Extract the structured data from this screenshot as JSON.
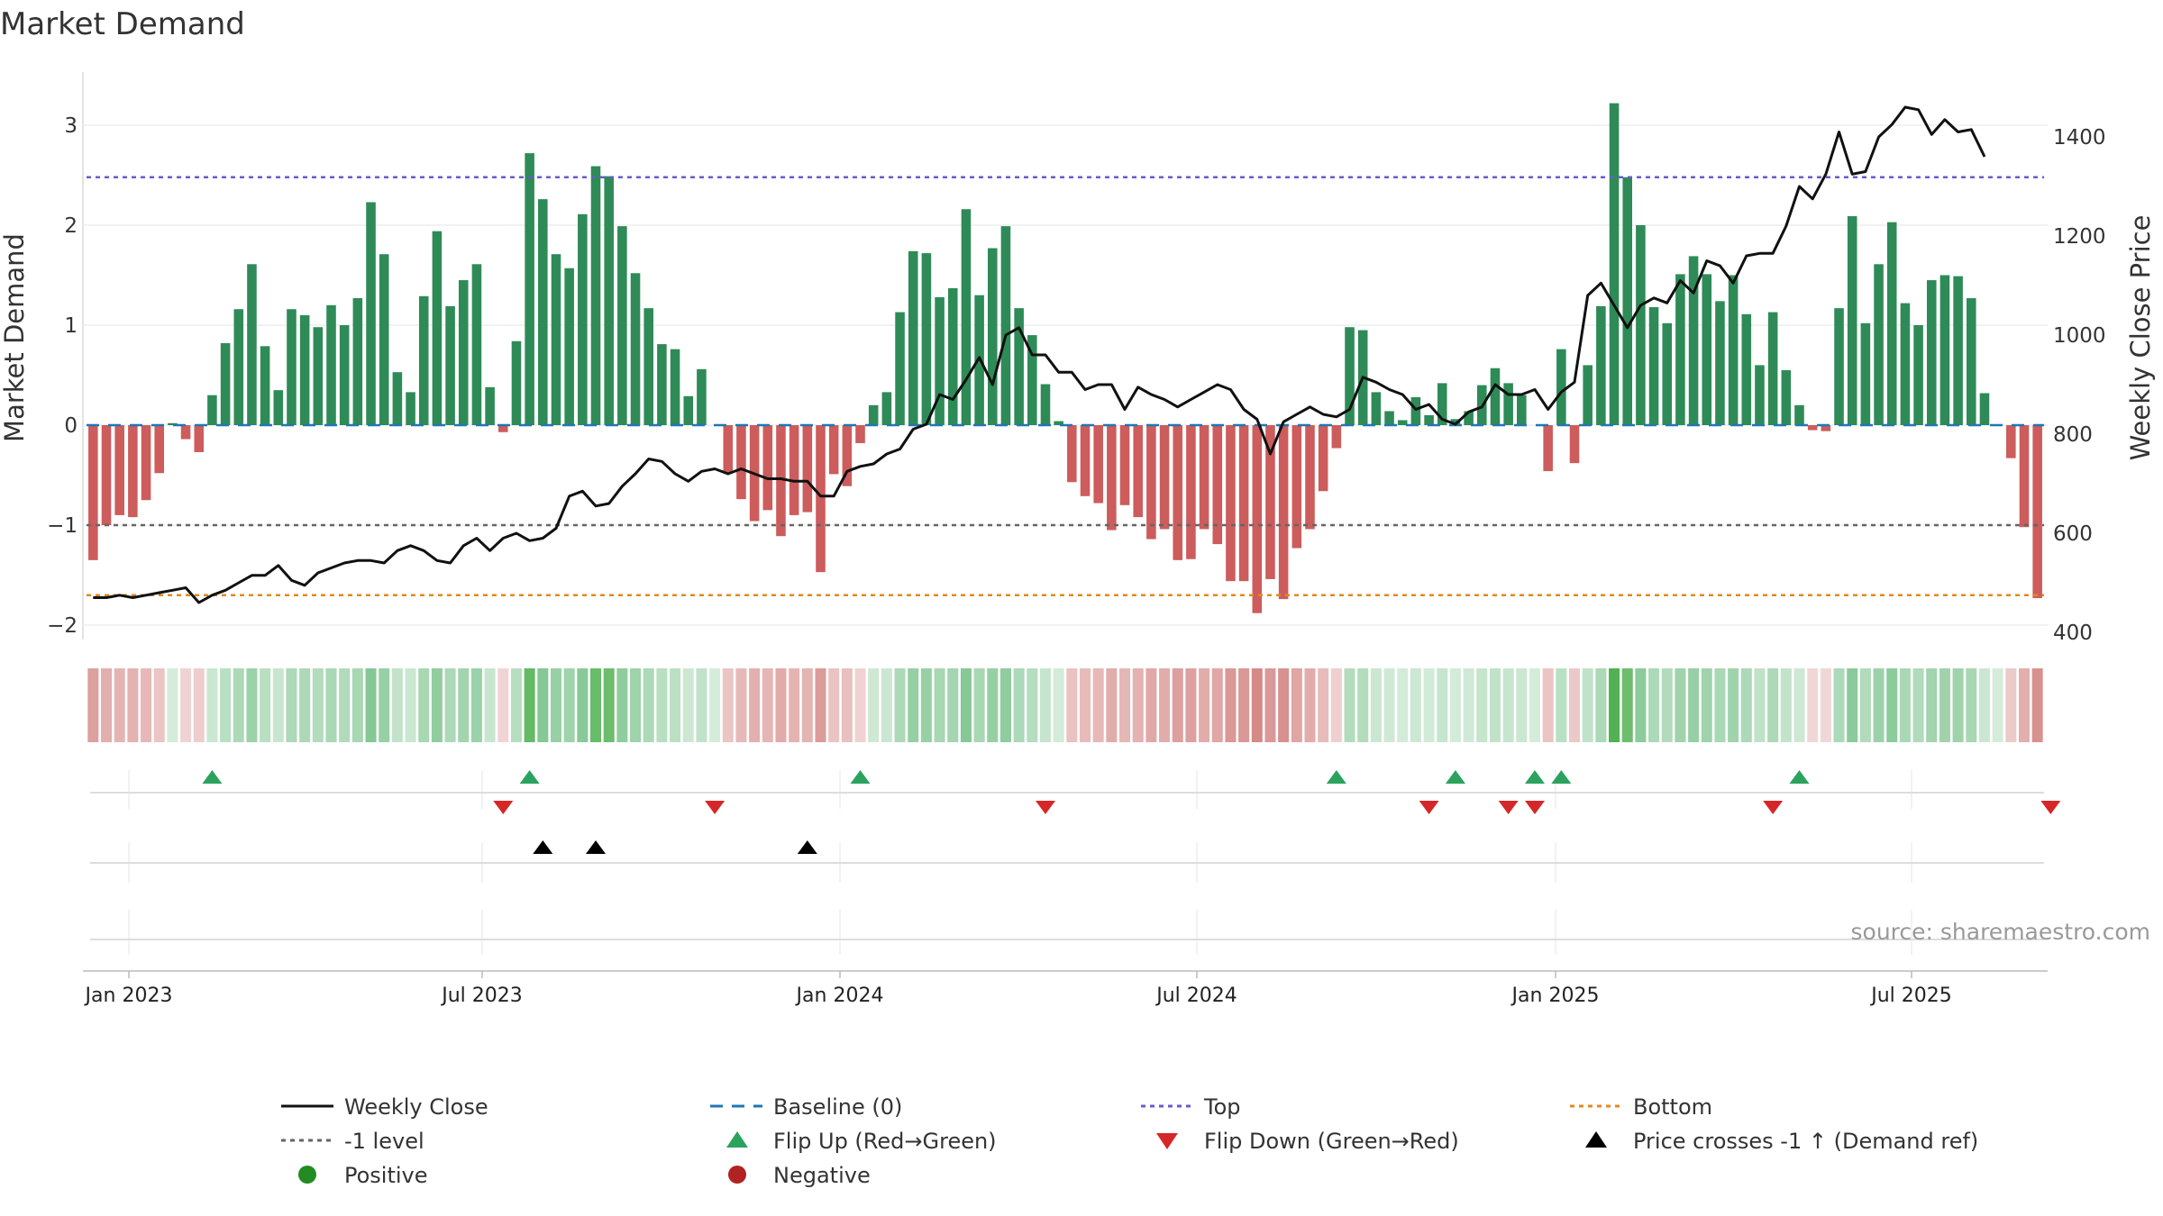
{
  "chart_data": {
    "type": "bar",
    "title": "Market Demand",
    "ylabel": "Market Demand",
    "y2label": "Weekly Close Price",
    "ylim": [
      -2.2,
      3.4
    ],
    "y2lim": [
      380,
      1540
    ],
    "yticks": [
      -2,
      -1,
      0,
      1,
      2,
      3
    ],
    "y2ticks": [
      400,
      600,
      800,
      1000,
      1200,
      1400
    ],
    "xticks": [
      "Jan 2023",
      "Jul 2023",
      "Jan 2024",
      "Jul 2024",
      "Jan 2025",
      "Jul 2025"
    ],
    "reference_lines": {
      "top": 2.48,
      "minus_one": -1.0,
      "bottom": -1.7,
      "baseline": 0
    },
    "demand": [
      -1.35,
      -1,
      -0.9,
      -0.92,
      -0.75,
      -0.48,
      0.02,
      -0.14,
      -0.27,
      0.3,
      0.82,
      1.16,
      1.61,
      0.79,
      0.35,
      1.16,
      1.1,
      0.98,
      1.2,
      1.0,
      1.27,
      2.23,
      1.71,
      0.53,
      0.33,
      1.29,
      1.94,
      1.19,
      1.45,
      1.61,
      0.38,
      -0.07,
      0.84,
      2.72,
      2.26,
      1.71,
      1.57,
      2.11,
      2.59,
      2.49,
      1.99,
      1.52,
      1.17,
      0.81,
      0.76,
      0.29,
      0.56,
      0.0,
      -0.48,
      -0.74,
      -0.96,
      -0.85,
      -1.11,
      -0.9,
      -0.87,
      -1.47,
      -0.49,
      -0.61,
      -0.18,
      0.2,
      0.33,
      1.13,
      1.74,
      1.72,
      1.28,
      1.37,
      2.16,
      1.3,
      1.77,
      1.99,
      1.17,
      0.9,
      0.41,
      0.04,
      -0.57,
      -0.71,
      -0.78,
      -1.05,
      -0.8,
      -0.92,
      -1.14,
      -1.04,
      -1.35,
      -1.34,
      -1.04,
      -1.19,
      -1.56,
      -1.56,
      -1.88,
      -1.54,
      -1.74,
      -1.23,
      -1.04,
      -0.66,
      -0.23,
      0.98,
      0.95,
      0.33,
      0.14,
      0.05,
      0.28,
      0.1,
      0.42,
      0.06,
      0.14,
      0.4,
      0.57,
      0.42,
      0.3,
      0.0,
      -0.46,
      0.76,
      -0.38,
      0.6,
      1.19,
      3.22,
      2.48,
      2.0,
      1.18,
      1.02,
      1.51,
      1.69,
      1.51,
      1.24,
      1.5,
      1.11,
      0.6,
      1.13,
      0.55,
      0.2,
      -0.05,
      -0.06,
      1.17,
      2.09,
      1.02,
      1.61,
      2.03,
      1.22,
      1.0,
      1.45,
      1.5,
      1.49,
      1.27,
      0.32,
      0.0,
      -0.33,
      -1.02,
      -1.73
    ],
    "weekly_close": [
      470,
      470,
      475,
      470,
      475,
      480,
      485,
      490,
      460,
      475,
      485,
      500,
      515,
      515,
      535,
      505,
      495,
      520,
      530,
      540,
      545,
      545,
      540,
      565,
      575,
      565,
      545,
      540,
      575,
      590,
      565,
      590,
      600,
      585,
      590,
      610,
      675,
      685,
      655,
      660,
      695,
      720,
      750,
      745,
      720,
      705,
      725,
      730,
      720,
      730,
      720,
      710,
      710,
      705,
      705,
      675,
      675,
      725,
      735,
      740,
      760,
      770,
      810,
      820,
      880,
      870,
      910,
      955,
      900,
      1000,
      1015,
      960,
      960,
      925,
      925,
      890,
      900,
      900,
      850,
      895,
      880,
      870,
      855,
      870,
      885,
      900,
      890,
      850,
      830,
      760,
      825,
      840,
      855,
      840,
      835,
      850,
      915,
      905,
      890,
      880,
      850,
      860,
      830,
      820,
      845,
      855,
      900,
      880,
      880,
      890,
      850,
      885,
      905,
      1080,
      1105,
      1060,
      1015,
      1060,
      1075,
      1065,
      1110,
      1085,
      1150,
      1140,
      1105,
      1160,
      1165,
      1165,
      1220,
      1300,
      1275,
      1325,
      1410,
      1325,
      1330,
      1400,
      1425,
      1460,
      1455,
      1405,
      1435,
      1410,
      1415,
      1360
    ],
    "flip_up_index": [
      9,
      33,
      58,
      94,
      103,
      109,
      111,
      129
    ],
    "flip_down_index": [
      31,
      47,
      72,
      101,
      107,
      109,
      127,
      148
    ],
    "price_cross_index": [
      34,
      38,
      54
    ]
  },
  "legend": {
    "weekly_close": "Weekly Close",
    "baseline": "Baseline (0)",
    "top": "Top",
    "bottom": "Bottom",
    "minus_one": "-1 level",
    "flip_up": "Flip Up (Red→Green)",
    "flip_down": "Flip Down (Green→Red)",
    "price_cross": "Price crosses -1 ↑ (Demand ref)",
    "positive": "Positive",
    "negative": "Negative"
  },
  "source": "source: sharemaestro.com",
  "colors": {
    "positive": "#2e8b57",
    "negative": "#cd5c5c",
    "top": "#6a5acd",
    "minus_one": "#666666",
    "bottom": "#e08a1e",
    "baseline": "#1f77b4",
    "flip_up": "#2ca25f",
    "flip_down": "#d62728",
    "positive_dot": "#228b22",
    "negative_dot": "#b22222"
  }
}
